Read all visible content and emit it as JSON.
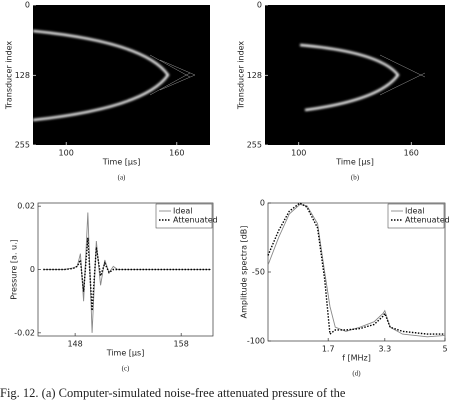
{
  "chart_data": [
    {
      "type": "image",
      "subcaption": "(a)",
      "x_label": "Time [µs]",
      "y_label": "Transducer index",
      "xlim": [
        82,
        178
      ],
      "xticks": [
        100,
        160
      ],
      "ylim": [
        0,
        255
      ],
      "yticks": [
        0,
        128,
        255
      ],
      "y_inverted": true
    },
    {
      "type": "image",
      "subcaption": "(b)",
      "x_label": "Time [µs]",
      "y_label": "Transducer index",
      "xlim": [
        82,
        178
      ],
      "xticks": [
        100,
        160
      ],
      "ylim": [
        0,
        255
      ],
      "yticks": [
        0,
        128,
        255
      ],
      "y_inverted": true
    },
    {
      "type": "line",
      "subcaption": "(c)",
      "x_label": "Time [µs]",
      "y_label": "Pressure [a. u.]",
      "xlim": [
        144.5,
        161
      ],
      "xticks": [
        148,
        158
      ],
      "ylim": [
        -0.021,
        0.021
      ],
      "yticks": [
        0.02,
        0,
        -0.02
      ],
      "legend": "upper right",
      "x": [
        145,
        146,
        147,
        147.8,
        148.2,
        148.5,
        148.8,
        149.2,
        149.6,
        150.0,
        150.4,
        150.8,
        151.2,
        151.6,
        152,
        153,
        155,
        158,
        160.8
      ],
      "series": [
        {
          "name": "Ideal",
          "color": "#888888",
          "style": "solid",
          "values": [
            0,
            0,
            0,
            0.0005,
            0.001,
            0.005,
            -0.01,
            0.018,
            -0.02,
            0.009,
            -0.005,
            0.003,
            -0.001,
            0.001,
            0,
            0,
            0,
            0,
            0
          ]
        },
        {
          "name": "Attenuated",
          "color": "#000000",
          "style": "dotted",
          "values": [
            0,
            0,
            0,
            0.0003,
            0.001,
            0.003,
            -0.007,
            0.01,
            -0.013,
            0.007,
            -0.002,
            0.002,
            -0.001,
            0,
            0,
            0,
            0,
            0,
            0
          ]
        }
      ]
    },
    {
      "type": "line",
      "subcaption": "(d)",
      "x_label": "f [MHz]",
      "y_label": "Amplitude spectra [dB]",
      "xlim": [
        0,
        5
      ],
      "xticks": [
        1.7,
        3.3,
        5
      ],
      "ylim": [
        -100,
        0
      ],
      "yticks": [
        0,
        -50,
        -100
      ],
      "legend": "upper right",
      "x": [
        0,
        0.3,
        0.6,
        0.9,
        1.1,
        1.4,
        1.6,
        1.75,
        1.9,
        2.2,
        2.6,
        3.0,
        3.25,
        3.3,
        3.45,
        3.8,
        4.5,
        5
      ],
      "series": [
        {
          "name": "Ideal",
          "color": "#888888",
          "style": "solid",
          "values": [
            -45,
            -25,
            -8,
            -1,
            -2,
            -15,
            -50,
            -75,
            -90,
            -93,
            -90,
            -86,
            -80,
            -78,
            -90,
            -95,
            -97,
            -96
          ]
        },
        {
          "name": "Attenuated",
          "color": "#000000",
          "style": "dotted",
          "values": [
            -38,
            -20,
            -6,
            0,
            -3,
            -18,
            -55,
            -95,
            -92,
            -92,
            -91,
            -88,
            -82,
            -80,
            -90,
            -93,
            -95,
            -95
          ]
        }
      ]
    }
  ],
  "caption": "Fig. 12. (a) Computer-simulated noise-free attenuated pressure of the"
}
